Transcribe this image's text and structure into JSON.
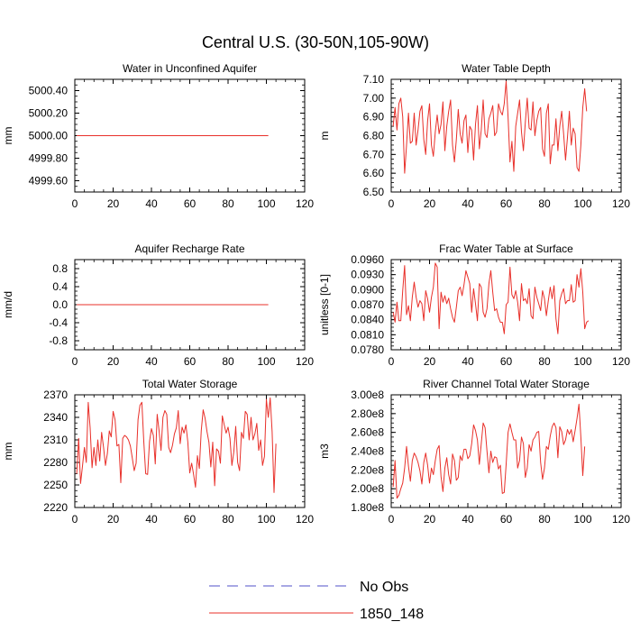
{
  "figure_title": "Central U.S. (30-50N,105-90W)",
  "legend": [
    {
      "label": "No Obs",
      "color": "#5050c8",
      "dash": true
    },
    {
      "label": "1850_148",
      "color": "#e8302a",
      "dash": false
    }
  ],
  "chart_data": [
    {
      "type": "line",
      "title": "Water in Unconfined Aquifer",
      "ylabel": "mm",
      "xlim": [
        0,
        120
      ],
      "ylim": [
        4999.5,
        5000.5
      ],
      "xticks": [
        0,
        20,
        40,
        60,
        80,
        100,
        120
      ],
      "xtick_labels": [
        "0",
        "20",
        "40",
        "60",
        "80",
        "100",
        "120"
      ],
      "yticks": [
        4999.6,
        4999.8,
        5000.0,
        5000.2,
        5000.4
      ],
      "ytick_labels": [
        "4999.60",
        "4999.80",
        "5000.00",
        "5000.20",
        "5000.40"
      ],
      "x_start": 1,
      "series": [
        {
          "name": "1850_148",
          "color": "#e8302a",
          "const": 5000.0,
          "n": 101
        }
      ]
    },
    {
      "type": "line",
      "title": "Water Table Depth",
      "ylabel": "m",
      "xlim": [
        0,
        120
      ],
      "ylim": [
        6.5,
        7.1
      ],
      "xticks": [
        0,
        20,
        40,
        60,
        80,
        100,
        120
      ],
      "xtick_labels": [
        "0",
        "20",
        "40",
        "60",
        "80",
        "100",
        "120"
      ],
      "yticks": [
        6.5,
        6.6,
        6.7,
        6.8,
        6.9,
        7.0,
        7.1
      ],
      "ytick_labels": [
        "6.50",
        "6.60",
        "6.70",
        "6.80",
        "6.90",
        "7.00",
        "7.10"
      ],
      "x_start": 1,
      "series": [
        {
          "name": "1850_148",
          "color": "#e8302a",
          "values": [
            6.85,
            6.95,
            6.83,
            6.97,
            7.0,
            6.9,
            6.6,
            6.75,
            6.92,
            6.76,
            6.77,
            6.92,
            6.75,
            6.83,
            6.93,
            6.96,
            6.78,
            6.7,
            6.88,
            6.97,
            6.75,
            6.69,
            6.82,
            6.91,
            6.81,
            6.86,
            6.98,
            6.72,
            6.85,
            6.93,
            6.99,
            6.75,
            6.66,
            6.78,
            6.94,
            6.81,
            6.76,
            6.88,
            6.91,
            6.71,
            6.85,
            6.83,
            6.67,
            6.86,
            6.96,
            6.73,
            6.83,
            6.99,
            6.81,
            6.79,
            6.89,
            6.92,
            6.96,
            6.8,
            6.82,
            6.97,
            6.93,
            6.91,
            6.97,
            7.09,
            6.9,
            6.66,
            6.77,
            6.61,
            6.85,
            6.92,
            6.99,
            6.82,
            6.72,
            6.87,
            7.0,
            6.84,
            6.83,
            6.98,
            6.8,
            6.88,
            6.93,
            6.95,
            6.73,
            6.69,
            6.92,
            6.97,
            6.65,
            6.75,
            6.75,
            6.89,
            6.72,
            6.85,
            6.93,
            6.81,
            6.67,
            6.79,
            6.93,
            6.75,
            6.84,
            6.81,
            6.63,
            6.61,
            6.75,
            6.95,
            7.05,
            6.93
          ]
        }
      ]
    },
    {
      "type": "line",
      "title": "Aquifer Recharge Rate",
      "ylabel": "mm/d",
      "xlim": [
        0,
        120
      ],
      "ylim": [
        -1.0,
        1.0
      ],
      "xticks": [
        0,
        20,
        40,
        60,
        80,
        100,
        120
      ],
      "xtick_labels": [
        "0",
        "20",
        "40",
        "60",
        "80",
        "100",
        "120"
      ],
      "yticks": [
        -0.8,
        -0.4,
        0.0,
        0.4,
        0.8
      ],
      "ytick_labels": [
        "-0.8",
        "-0.4",
        "0.0",
        "0.4",
        "0.8"
      ],
      "x_start": 1,
      "series": [
        {
          "name": "1850_148",
          "color": "#e8302a",
          "const": 0.0,
          "n": 101
        }
      ]
    },
    {
      "type": "line",
      "title": "Frac Water Table at Surface",
      "ylabel": "unitless [0-1]",
      "xlim": [
        0,
        120
      ],
      "ylim": [
        0.078,
        0.096
      ],
      "xticks": [
        0,
        20,
        40,
        60,
        80,
        100,
        120
      ],
      "xtick_labels": [
        "0",
        "20",
        "40",
        "60",
        "80",
        "100",
        "120"
      ],
      "yticks": [
        0.078,
        0.081,
        0.084,
        0.087,
        0.09,
        0.093,
        0.096
      ],
      "ytick_labels": [
        "0.0780",
        "0.0810",
        "0.0840",
        "0.0870",
        "0.0900",
        "0.0930",
        "0.0960"
      ],
      "x_start": 1,
      "series": [
        {
          "name": "1850_148",
          "color": "#e8302a",
          "values": [
            0.0855,
            0.0835,
            0.0875,
            0.0838,
            0.0838,
            0.0898,
            0.0948,
            0.085,
            0.0868,
            0.0838,
            0.0885,
            0.0915,
            0.0885,
            0.0865,
            0.0878,
            0.0872,
            0.0838,
            0.0898,
            0.0882,
            0.0855,
            0.0885,
            0.0905,
            0.0953,
            0.0945,
            0.0822,
            0.0895,
            0.0875,
            0.0888,
            0.0872,
            0.0883,
            0.0862,
            0.0845,
            0.0835,
            0.0865,
            0.0898,
            0.0905,
            0.0888,
            0.091,
            0.0938,
            0.0925,
            0.0912,
            0.0855,
            0.0902,
            0.0872,
            0.0838,
            0.0912,
            0.0905,
            0.0855,
            0.0845,
            0.0862,
            0.0912,
            0.0938,
            0.0895,
            0.0858,
            0.0862,
            0.0845,
            0.0835,
            0.0835,
            0.0812,
            0.087,
            0.0875,
            0.0945,
            0.089,
            0.0882,
            0.0898,
            0.0875,
            0.0838,
            0.0912,
            0.0878,
            0.0882,
            0.0872,
            0.0902,
            0.0848,
            0.0842,
            0.0905,
            0.0885,
            0.0872,
            0.0858,
            0.0898,
            0.0882,
            0.0848,
            0.0878,
            0.0905,
            0.0882,
            0.0908,
            0.0842,
            0.0812,
            0.0878,
            0.0892,
            0.0902,
            0.0872,
            0.0878,
            0.0878,
            0.091,
            0.0875,
            0.0878,
            0.093,
            0.0905,
            0.0942,
            0.0895,
            0.0822,
            0.0835,
            0.0838
          ]
        }
      ]
    },
    {
      "type": "line",
      "title": "Total Water Storage",
      "ylabel": "mm",
      "xlim": [
        0,
        120
      ],
      "ylim": [
        2220,
        2370
      ],
      "xticks": [
        0,
        20,
        40,
        60,
        80,
        100,
        120
      ],
      "xtick_labels": [
        "0",
        "20",
        "40",
        "60",
        "80",
        "100",
        "120"
      ],
      "yticks": [
        2220,
        2250,
        2280,
        2310,
        2340,
        2370
      ],
      "ytick_labels": [
        "2220",
        "2250",
        "2280",
        "2310",
        "2340",
        "2370"
      ],
      "x_start": 1,
      "series": [
        {
          "name": "1850_148",
          "color": "#e8302a",
          "values": [
            2265,
            2312,
            2252,
            2275,
            2300,
            2280,
            2360,
            2326,
            2273,
            2300,
            2276,
            2310,
            2282,
            2320,
            2300,
            2276,
            2292,
            2322,
            2314,
            2348,
            2337,
            2302,
            2304,
            2253,
            2312,
            2316,
            2314,
            2310,
            2302,
            2286,
            2269,
            2279,
            2337,
            2356,
            2360,
            2308,
            2265,
            2264,
            2308,
            2325,
            2316,
            2278,
            2344,
            2322,
            2296,
            2340,
            2349,
            2344,
            2300,
            2293,
            2303,
            2318,
            2326,
            2349,
            2305,
            2327,
            2319,
            2330,
            2307,
            2266,
            2279,
            2264,
            2247,
            2289,
            2272,
            2322,
            2350,
            2339,
            2321,
            2307,
            2274,
            2307,
            2249,
            2298,
            2295,
            2279,
            2342,
            2330,
            2319,
            2327,
            2312,
            2276,
            2294,
            2328,
            2280,
            2269,
            2320,
            2312,
            2348,
            2344,
            2310,
            2340,
            2310,
            2318,
            2332,
            2296,
            2310,
            2276,
            2288,
            2364,
            2340,
            2366,
            2321,
            2240,
            2305
          ]
        }
      ]
    },
    {
      "type": "line",
      "title": "River Channel Total Water Storage",
      "ylabel": "m3",
      "xlim": [
        0,
        120
      ],
      "ylim": [
        180000000.0,
        300000000.0
      ],
      "xticks": [
        0,
        20,
        40,
        60,
        80,
        100,
        120
      ],
      "xtick_labels": [
        "0",
        "20",
        "40",
        "60",
        "80",
        "100",
        "120"
      ],
      "yticks": [
        180000000.0,
        200000000.0,
        220000000.0,
        240000000.0,
        260000000.0,
        280000000.0,
        300000000.0
      ],
      "ytick_labels": [
        "1.80e8",
        "2.00e8",
        "2.20e8",
        "2.40e8",
        "2.60e8",
        "2.80e8",
        "3.00e8"
      ],
      "x_start": 1,
      "series": [
        {
          "name": "1850_148",
          "color": "#e8302a",
          "values": [
            202000000.0,
            230000000.0,
            190000000.0,
            193000000.0,
            200000000.0,
            206000000.0,
            222000000.0,
            245000000.0,
            224000000.0,
            208000000.0,
            230000000.0,
            238000000.0,
            234000000.0,
            228000000.0,
            219000000.0,
            205000000.0,
            228000000.0,
            238000000.0,
            225000000.0,
            206000000.0,
            222000000.0,
            215000000.0,
            230000000.0,
            242000000.0,
            246000000.0,
            213000000.0,
            197000000.0,
            222000000.0,
            233000000.0,
            215000000.0,
            205000000.0,
            237000000.0,
            230000000.0,
            209000000.0,
            212000000.0,
            235000000.0,
            230000000.0,
            242000000.0,
            242000000.0,
            232000000.0,
            235000000.0,
            248000000.0,
            268000000.0,
            262000000.0,
            252000000.0,
            226000000.0,
            248000000.0,
            270000000.0,
            265000000.0,
            240000000.0,
            217000000.0,
            240000000.0,
            228000000.0,
            234000000.0,
            233000000.0,
            221000000.0,
            225000000.0,
            195000000.0,
            196000000.0,
            226000000.0,
            260000000.0,
            269000000.0,
            260000000.0,
            252000000.0,
            252000000.0,
            222000000.0,
            230000000.0,
            255000000.0,
            248000000.0,
            212000000.0,
            222000000.0,
            247000000.0,
            240000000.0,
            252000000.0,
            255000000.0,
            260000000.0,
            261000000.0,
            228000000.0,
            210000000.0,
            222000000.0,
            245000000.0,
            242000000.0,
            256000000.0,
            266000000.0,
            270000000.0,
            265000000.0,
            233000000.0,
            266000000.0,
            261000000.0,
            247000000.0,
            252000000.0,
            263000000.0,
            258000000.0,
            263000000.0,
            250000000.0,
            262000000.0,
            275000000.0,
            290000000.0,
            255000000.0,
            214000000.0,
            245000000.0
          ]
        }
      ]
    }
  ]
}
